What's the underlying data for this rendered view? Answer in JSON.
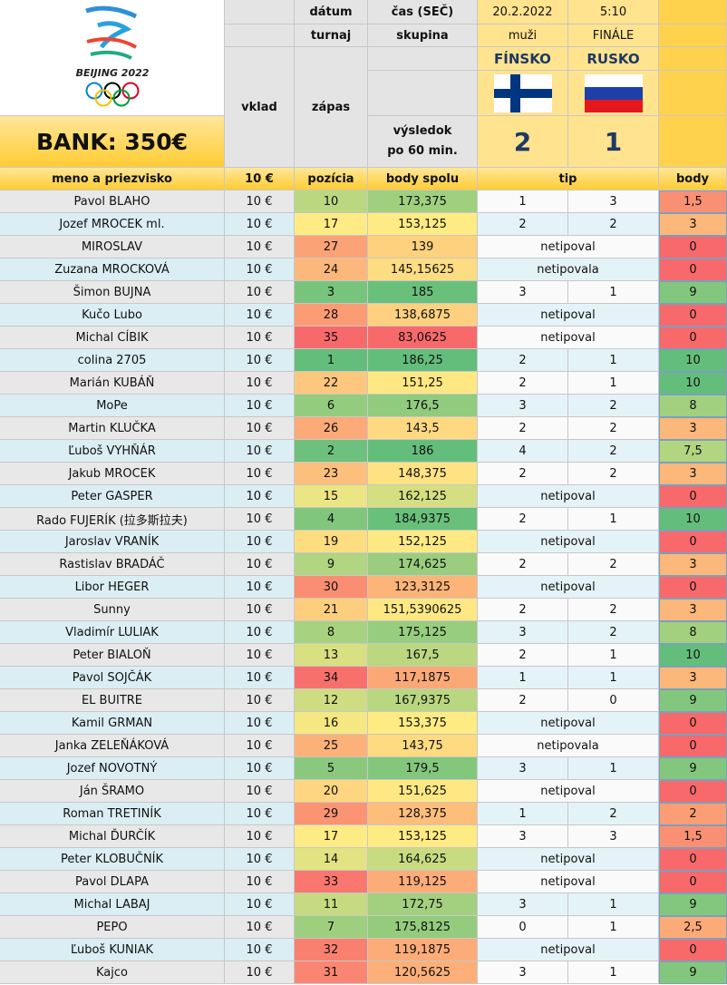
{
  "header": {
    "logo_text": "BEIJING 2022",
    "bank": "BANK: 350€",
    "date_label": "dátum",
    "time_label": "čas (SEČ)",
    "date": "20.2.2022",
    "time": "5:10",
    "tournament_label": "turnaj",
    "group_label": "skupina",
    "tournament": "muži",
    "group": "FINÁLE",
    "stake_label": "vklad",
    "match_label": "zápas",
    "result_label": [
      "výsledok",
      "po 60 min."
    ],
    "team1": "FÍNSKO",
    "team2": "RUSKO",
    "score1": 2,
    "score2": 1
  },
  "table": {
    "columns": {
      "name": "meno a priezvisko",
      "stake": "10 €",
      "position": "pozícia",
      "total": "body spolu",
      "tip": "tip",
      "points": "body"
    },
    "rows": [
      {
        "name": "Pavol BLAHO",
        "stake": "10 €",
        "position": 10,
        "total": "173,375",
        "tip": [
          1,
          3
        ],
        "points": "1,5"
      },
      {
        "name": "Jozef MROCEK ml.",
        "stake": "10 €",
        "position": 17,
        "total": "153,125",
        "tip": [
          2,
          2
        ],
        "points": "3"
      },
      {
        "name": "MIROSLAV",
        "stake": "10 €",
        "position": 27,
        "total": "139",
        "tip": "netipoval",
        "points": "0"
      },
      {
        "name": "Zuzana MROCKOVÁ",
        "stake": "10 €",
        "position": 24,
        "total": "145,15625",
        "tip": "netipovala",
        "points": "0"
      },
      {
        "name": "Šimon BUJNA",
        "stake": "10 €",
        "position": 3,
        "total": "185",
        "tip": [
          3,
          1
        ],
        "points": "9"
      },
      {
        "name": "Kučo Lubo",
        "stake": "10 €",
        "position": 28,
        "total": "138,6875",
        "tip": "netipoval",
        "points": "0"
      },
      {
        "name": "Michal CÍBIK",
        "stake": "10 €",
        "position": 35,
        "total": "83,0625",
        "tip": "netipoval",
        "points": "0"
      },
      {
        "name": "colina 2705",
        "stake": "10 €",
        "position": 1,
        "total": "186,25",
        "tip": [
          2,
          1
        ],
        "points": "10"
      },
      {
        "name": "Marián KUBÁŇ",
        "stake": "10 €",
        "position": 22,
        "total": "151,25",
        "tip": [
          2,
          1
        ],
        "points": "10"
      },
      {
        "name": "MoPe",
        "stake": "10 €",
        "position": 6,
        "total": "176,5",
        "tip": [
          3,
          2
        ],
        "points": "8"
      },
      {
        "name": "Martin KLUČKA",
        "stake": "10 €",
        "position": 26,
        "total": "143,5",
        "tip": [
          2,
          2
        ],
        "points": "3"
      },
      {
        "name": "Ľuboš VYHŇÁR",
        "stake": "10 €",
        "position": 2,
        "total": "186",
        "tip": [
          4,
          2
        ],
        "points": "7,5"
      },
      {
        "name": "Jakub MROCEK",
        "stake": "10 €",
        "position": 23,
        "total": "148,375",
        "tip": [
          2,
          2
        ],
        "points": "3"
      },
      {
        "name": "Peter GASPER",
        "stake": "10 €",
        "position": 15,
        "total": "162,125",
        "tip": "netipoval",
        "points": "0"
      },
      {
        "name": "Rado FUJERÍK (拉多斯拉夫)",
        "stake": "10 €",
        "position": 4,
        "total": "184,9375",
        "tip": [
          2,
          1
        ],
        "points": "10"
      },
      {
        "name": "Jaroslav VRANÍK",
        "stake": "10 €",
        "position": 19,
        "total": "152,125",
        "tip": "netipoval",
        "points": "0"
      },
      {
        "name": "Rastislav BRADÁČ",
        "stake": "10 €",
        "position": 9,
        "total": "174,625",
        "tip": [
          2,
          2
        ],
        "points": "3"
      },
      {
        "name": "Libor HEGER",
        "stake": "10 €",
        "position": 30,
        "total": "123,3125",
        "tip": "netipoval",
        "points": "0"
      },
      {
        "name": "Sunny",
        "stake": "10 €",
        "position": 21,
        "total": "151,5390625",
        "tip": [
          2,
          2
        ],
        "points": "3"
      },
      {
        "name": "Vladimír LULIAK",
        "stake": "10 €",
        "position": 8,
        "total": "175,125",
        "tip": [
          3,
          2
        ],
        "points": "8"
      },
      {
        "name": "Peter BIALOŇ",
        "stake": "10 €",
        "position": 13,
        "total": "167,5",
        "tip": [
          2,
          1
        ],
        "points": "10"
      },
      {
        "name": "Pavol SOJČÁK",
        "stake": "10 €",
        "position": 34,
        "total": "117,1875",
        "tip": [
          1,
          1
        ],
        "points": "3"
      },
      {
        "name": "EL BUITRE",
        "stake": "10 €",
        "position": 12,
        "total": "167,9375",
        "tip": [
          2,
          0
        ],
        "points": "9"
      },
      {
        "name": "Kamil GRMAN",
        "stake": "10 €",
        "position": 16,
        "total": "153,375",
        "tip": "netipoval",
        "points": "0"
      },
      {
        "name": "Janka ZELEŇÁKOVÁ",
        "stake": "10 €",
        "position": 25,
        "total": "143,75",
        "tip": "netipovala",
        "points": "0"
      },
      {
        "name": "Jozef NOVOTNÝ",
        "stake": "10 €",
        "position": 5,
        "total": "179,5",
        "tip": [
          3,
          1
        ],
        "points": "9"
      },
      {
        "name": "Ján ŠRAMO",
        "stake": "10 €",
        "position": 20,
        "total": "151,625",
        "tip": "netipoval",
        "points": "0"
      },
      {
        "name": "Roman TRETINÍK",
        "stake": "10 €",
        "position": 29,
        "total": "128,375",
        "tip": [
          1,
          2
        ],
        "points": "2"
      },
      {
        "name": "Michal ĎURČÍK",
        "stake": "10 €",
        "position": 17,
        "total": "153,125",
        "tip": [
          3,
          3
        ],
        "points": "1,5"
      },
      {
        "name": "Peter KLOBUČNÍK",
        "stake": "10 €",
        "position": 14,
        "total": "164,625",
        "tip": "netipoval",
        "points": "0"
      },
      {
        "name": "Pavol DLAPA",
        "stake": "10 €",
        "position": 33,
        "total": "119,125",
        "tip": "netipoval",
        "points": "0"
      },
      {
        "name": "Michal LABAJ",
        "stake": "10 €",
        "position": 11,
        "total": "172,75",
        "tip": [
          3,
          1
        ],
        "points": "9"
      },
      {
        "name": "PEPO",
        "stake": "10 €",
        "position": 7,
        "total": "175,8125",
        "tip": [
          0,
          1
        ],
        "points": "2,5"
      },
      {
        "name": "Ľuboš KUNIAK",
        "stake": "10 €",
        "position": 32,
        "total": "119,1875",
        "tip": "netipoval",
        "points": "0"
      },
      {
        "name": "Kajco",
        "stake": "10 €",
        "position": 31,
        "total": "120,5625",
        "tip": [
          3,
          1
        ],
        "points": "9"
      }
    ]
  }
}
